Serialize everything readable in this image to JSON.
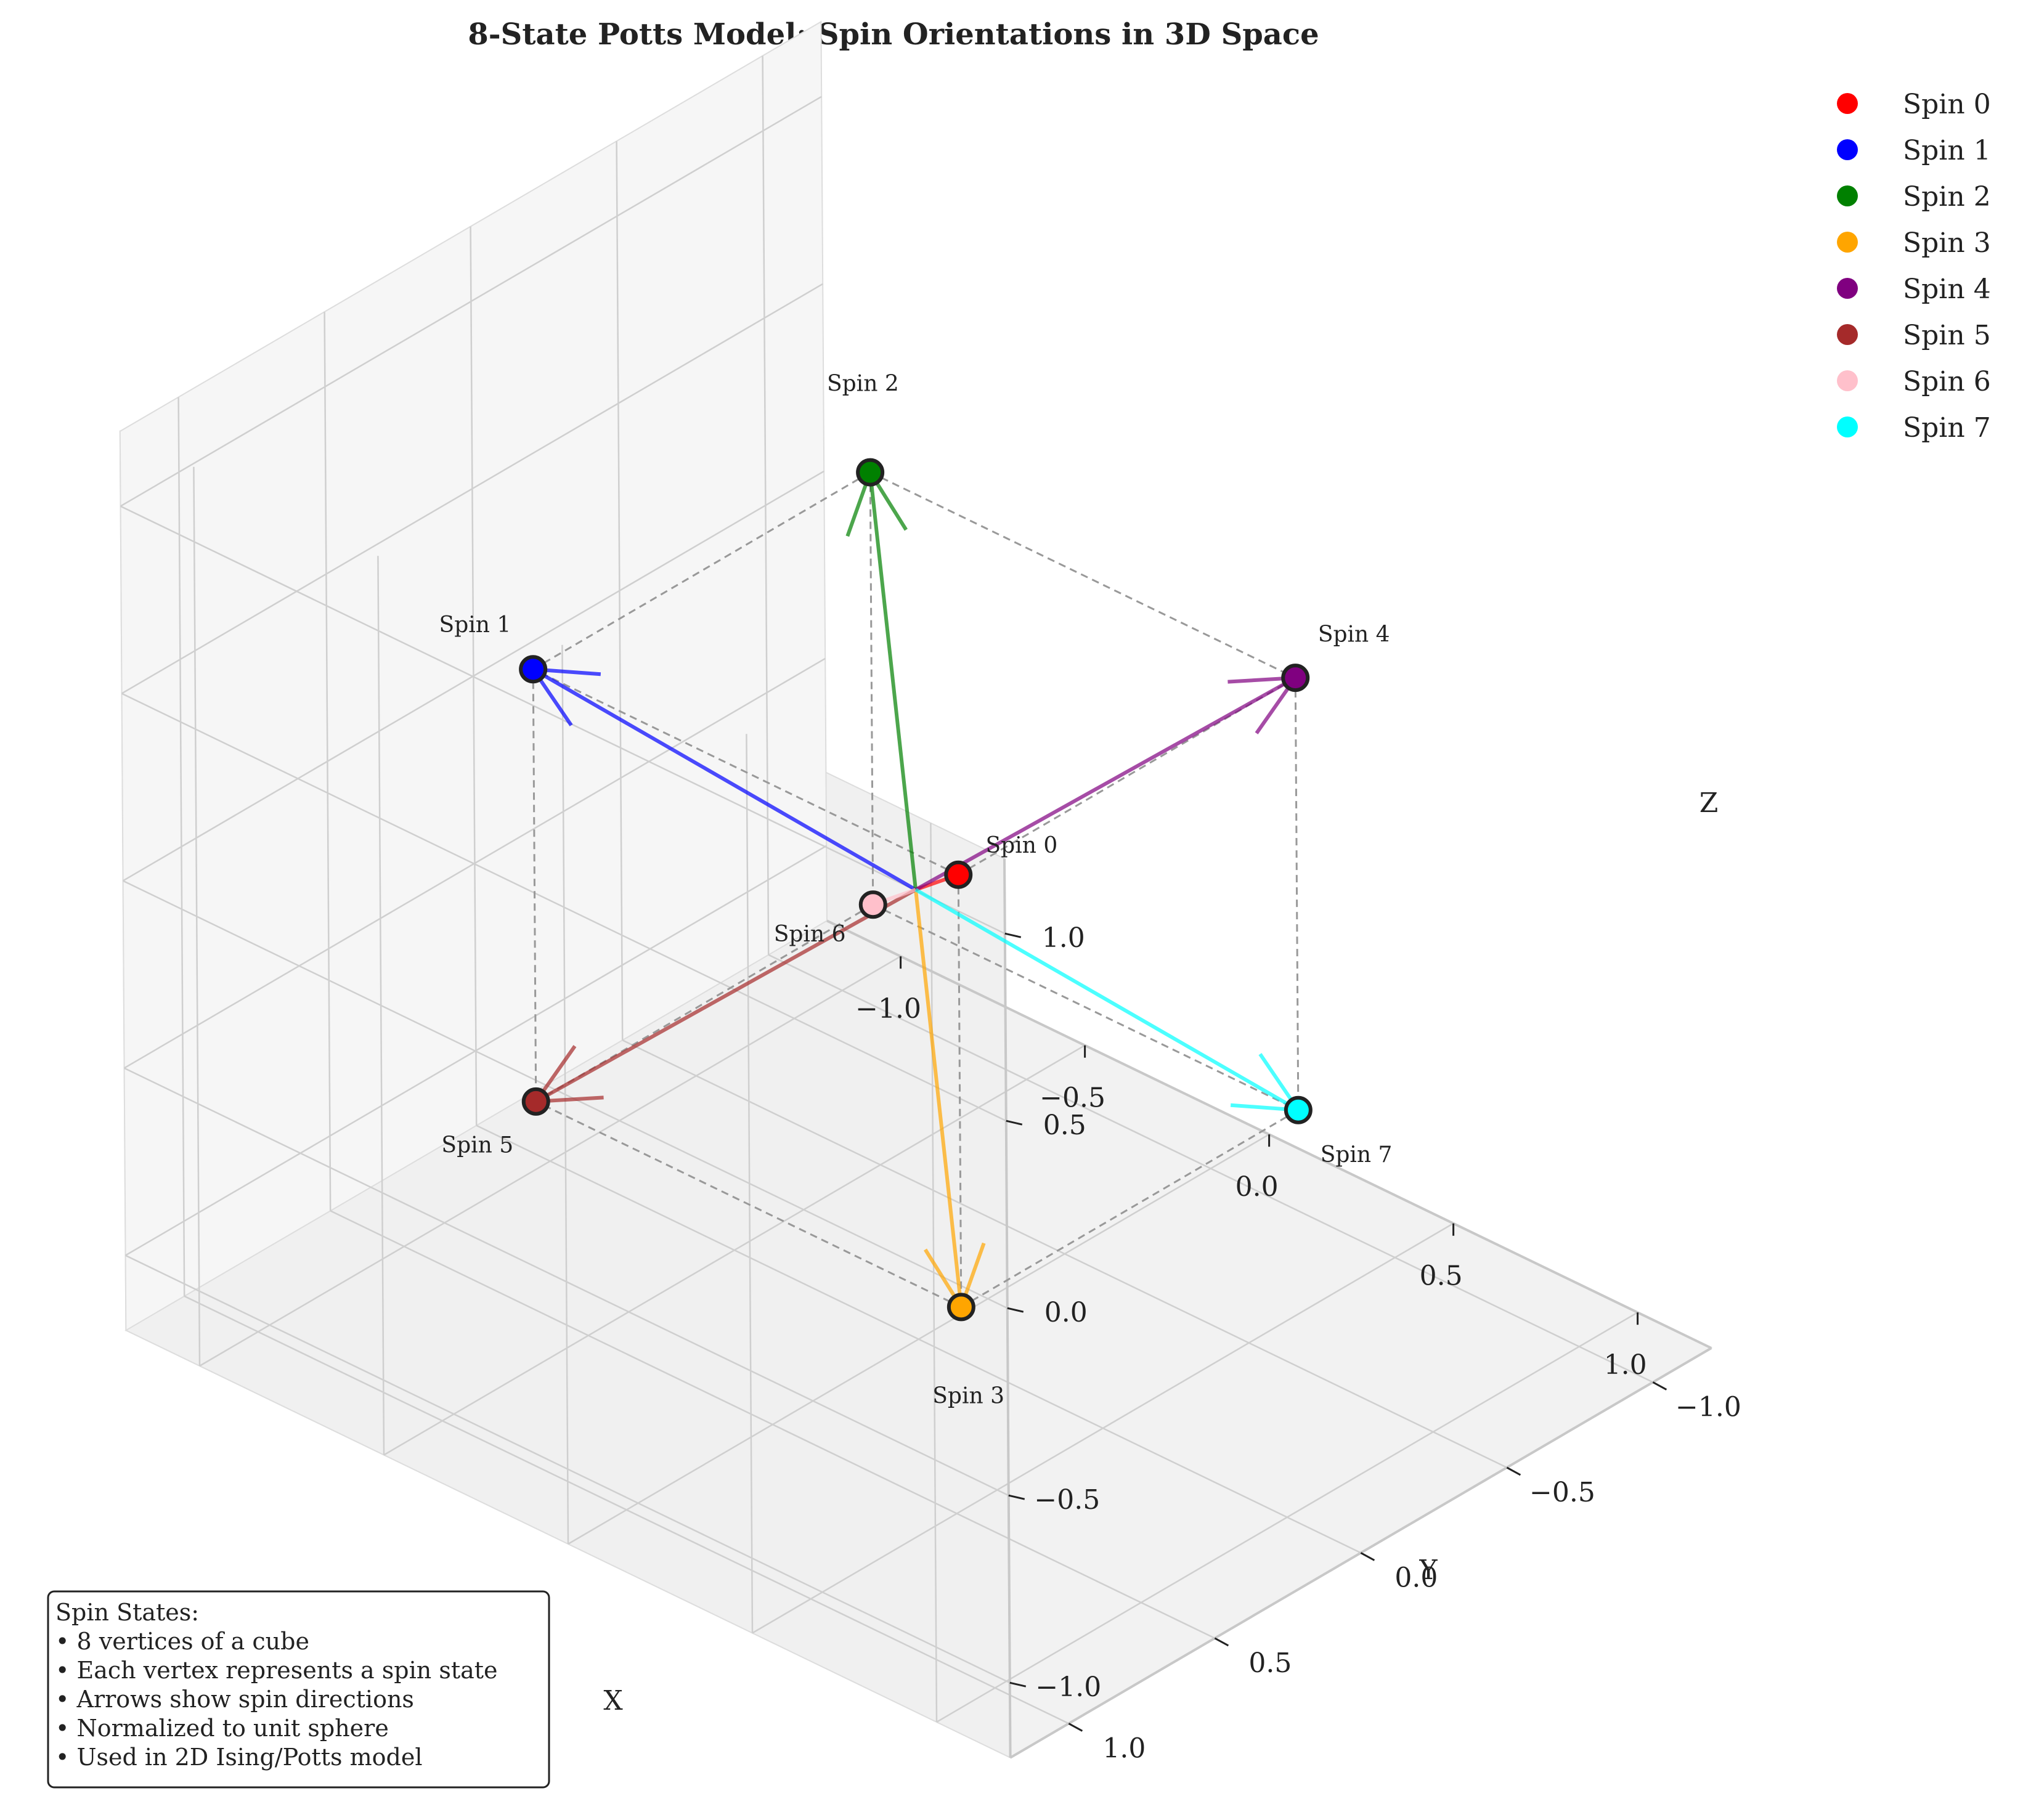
{
  "chart_data": {
    "type": "scatter",
    "title": "8-State Potts Model: Spin Orientations in 3D Space",
    "xlabel": "X",
    "ylabel": "Y",
    "zlabel": "Z",
    "xlim": [
      -1.2,
      1.2
    ],
    "ylim": [
      -1.2,
      1.2
    ],
    "zlim": [
      -1.2,
      1.2
    ],
    "x_ticks": [
      "−1.0",
      "−0.5",
      "0.0",
      "0.5",
      "1.0"
    ],
    "y_ticks": [
      "−1.0",
      "−0.5",
      "0.0",
      "0.5",
      "1.0"
    ],
    "z_ticks": [
      "−1.0",
      "−0.5",
      "0.0",
      "0.5",
      "1.0"
    ],
    "grid": true,
    "legend_position": "top-right",
    "series": [
      {
        "name": "Spin 0",
        "label": "Spin 0",
        "color": "#ff0000",
        "x": 0.577,
        "y": 0.577,
        "z": 0.577
      },
      {
        "name": "Spin 1",
        "label": "Spin 1",
        "color": "#0000ff",
        "x": -0.577,
        "y": 0.577,
        "z": 0.577
      },
      {
        "name": "Spin 2",
        "label": "Spin 2",
        "color": "#008000",
        "x": -0.577,
        "y": -0.577,
        "z": 0.577
      },
      {
        "name": "Spin 3",
        "label": "Spin 3",
        "color": "#ffa500",
        "x": 0.577,
        "y": 0.577,
        "z": -0.577
      },
      {
        "name": "Spin 4",
        "label": "Spin 4",
        "color": "#800080",
        "x": 0.577,
        "y": -0.577,
        "z": 0.577
      },
      {
        "name": "Spin 5",
        "label": "Spin 5",
        "color": "#a52a2a",
        "x": -0.577,
        "y": 0.577,
        "z": -0.577
      },
      {
        "name": "Spin 6",
        "label": "Spin 6",
        "color": "#ffc0cb",
        "x": -0.577,
        "y": -0.577,
        "z": -0.577
      },
      {
        "name": "Spin 7",
        "label": "Spin 7",
        "color": "#00ffff",
        "x": 0.577,
        "y": -0.577,
        "z": -0.577
      }
    ],
    "annotation": {
      "title": "Spin States:",
      "lines": [
        "• 8 vertices of a cube",
        "• Each vertex represents a spin state",
        "• Arrows show spin directions",
        "• Normalized to unit sphere",
        "• Used in 2D Ising/Potts model"
      ]
    }
  }
}
